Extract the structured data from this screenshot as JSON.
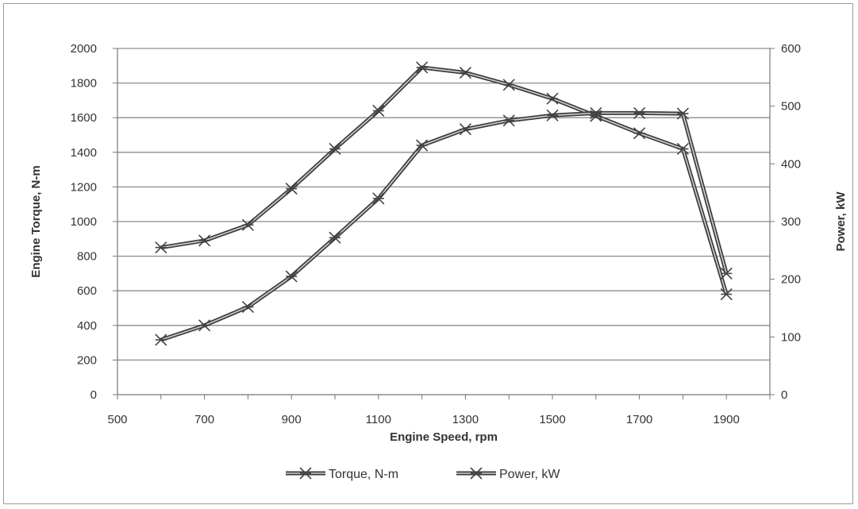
{
  "chart_data": {
    "type": "line",
    "title": "",
    "xlabel": "Engine Speed, rpm",
    "ylabel": "Engine Torque, N-m",
    "y2label": "Power, kW",
    "xlim": [
      500,
      2000
    ],
    "ylim": [
      0,
      2000
    ],
    "y2lim": [
      0,
      600
    ],
    "xticks": [
      "500",
      "700",
      "900",
      "1100",
      "1300",
      "1500",
      "1700",
      "1900"
    ],
    "yticks": [
      "0",
      "200",
      "400",
      "600",
      "800",
      "1000",
      "1200",
      "1400",
      "1600",
      "1800",
      "2000"
    ],
    "y2ticks": [
      "0",
      "100",
      "200",
      "300",
      "400",
      "500",
      "600"
    ],
    "grid": true,
    "legend_position": "bottom",
    "x": [
      600,
      700,
      800,
      900,
      1000,
      1100,
      1200,
      1300,
      1400,
      1500,
      1600,
      1700,
      1800,
      1900
    ],
    "series": [
      {
        "name": "Torque, N-m",
        "axis": "left",
        "color": "#4a4a4a",
        "values": [
          850,
          890,
          980,
          1190,
          1420,
          1640,
          1890,
          1860,
          1790,
          1710,
          1610,
          1510,
          1420,
          580
        ]
      },
      {
        "name": "Power, kW",
        "axis": "right",
        "color": "#4a4a4a",
        "values": [
          95,
          120,
          152,
          205,
          272,
          340,
          432,
          460,
          475,
          484,
          488,
          488,
          487,
          210
        ]
      }
    ]
  }
}
